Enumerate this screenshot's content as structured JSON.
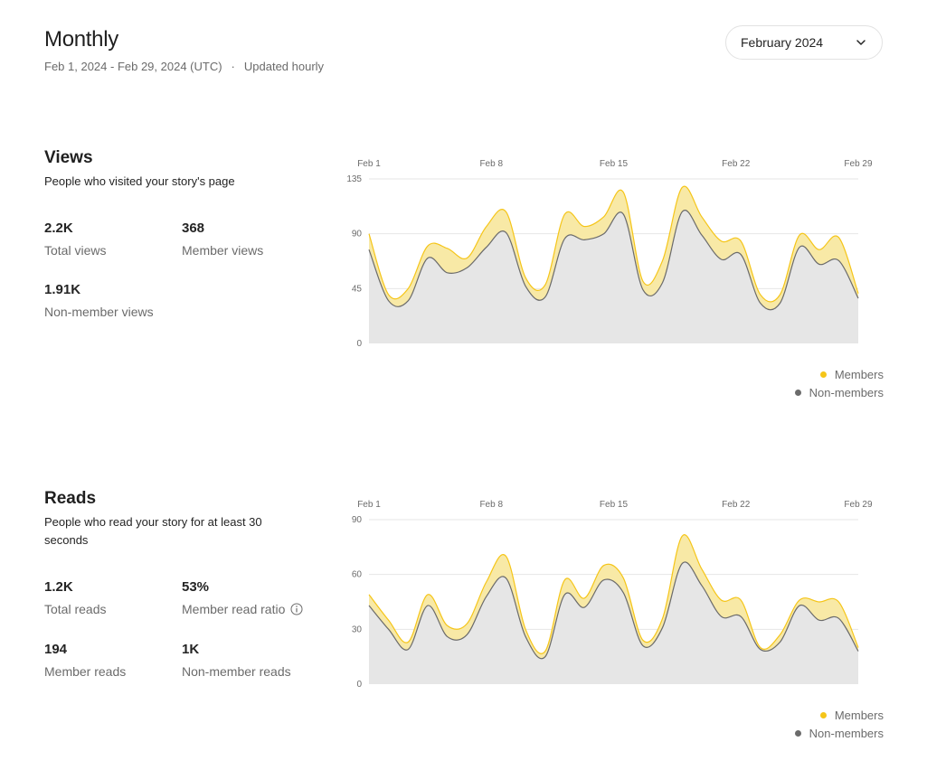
{
  "header": {
    "title": "Monthly",
    "date_range": "Feb 1, 2024 - Feb 29, 2024 (UTC)",
    "separator": "·",
    "update_note": "Updated hourly",
    "month_select": "February 2024"
  },
  "colors": {
    "members": "#F5C518",
    "members_fill": "#F8E9A6",
    "nonmembers": "#6B6B6B",
    "nonmembers_fill": "#E6E6E6",
    "grid": "#E6E6E6"
  },
  "views": {
    "title": "Views",
    "description": "People who visited your story's page",
    "stats": [
      {
        "value": "2.2K",
        "label": "Total views"
      },
      {
        "value": "368",
        "label": "Member views"
      },
      {
        "value": "1.91K",
        "label": "Non-member views"
      }
    ],
    "legend": {
      "members": "Members",
      "nonmembers": "Non-members"
    }
  },
  "reads": {
    "title": "Reads",
    "description": "People who read your story for at least 30 seconds",
    "stats": [
      {
        "value": "1.2K",
        "label": "Total reads"
      },
      {
        "value": "53%",
        "label": "Member read ratio",
        "icon": "info-icon"
      },
      {
        "value": "194",
        "label": "Member reads"
      },
      {
        "value": "1K",
        "label": "Non-member reads"
      }
    ],
    "legend": {
      "members": "Members",
      "nonmembers": "Non-members"
    }
  },
  "chart_data": [
    {
      "type": "area",
      "x_ticks": [
        "Feb 1",
        "Feb 8",
        "Feb 15",
        "Feb 22",
        "Feb 29"
      ],
      "y_ticks": [
        0,
        45,
        90,
        135
      ],
      "ylim": [
        0,
        135
      ],
      "grid": true,
      "legend_position": "bottom-right",
      "series": [
        {
          "name": "Non-members",
          "values": [
            77,
            35,
            35,
            70,
            58,
            62,
            79,
            91,
            47,
            38,
            86,
            85,
            90,
            106,
            44,
            50,
            108,
            89,
            69,
            73,
            33,
            33,
            79,
            65,
            68,
            37
          ]
        },
        {
          "name": "Members",
          "values": [
            90,
            40,
            45,
            80,
            78,
            70,
            96,
            108,
            54,
            48,
            106,
            96,
            104,
            124,
            51,
            68,
            128,
            104,
            84,
            84,
            40,
            40,
            89,
            77,
            87,
            41
          ]
        }
      ]
    },
    {
      "type": "area",
      "x_ticks": [
        "Feb 1",
        "Feb 8",
        "Feb 15",
        "Feb 22",
        "Feb 29"
      ],
      "y_ticks": [
        0,
        30,
        60,
        90
      ],
      "ylim": [
        0,
        90
      ],
      "grid": true,
      "legend_position": "bottom-right",
      "series": [
        {
          "name": "Non-members",
          "values": [
            43,
            30,
            19,
            43,
            26,
            27,
            48,
            58,
            26,
            15,
            49,
            42,
            57,
            50,
            21,
            31,
            66,
            54,
            37,
            37,
            19,
            23,
            43,
            35,
            36,
            18
          ]
        },
        {
          "name": "Members",
          "values": [
            49,
            35,
            23,
            49,
            32,
            33,
            56,
            70,
            30,
            18,
            57,
            47,
            65,
            58,
            24,
            36,
            81,
            63,
            46,
            46,
            20,
            27,
            46,
            45,
            45,
            20
          ]
        }
      ]
    }
  ]
}
